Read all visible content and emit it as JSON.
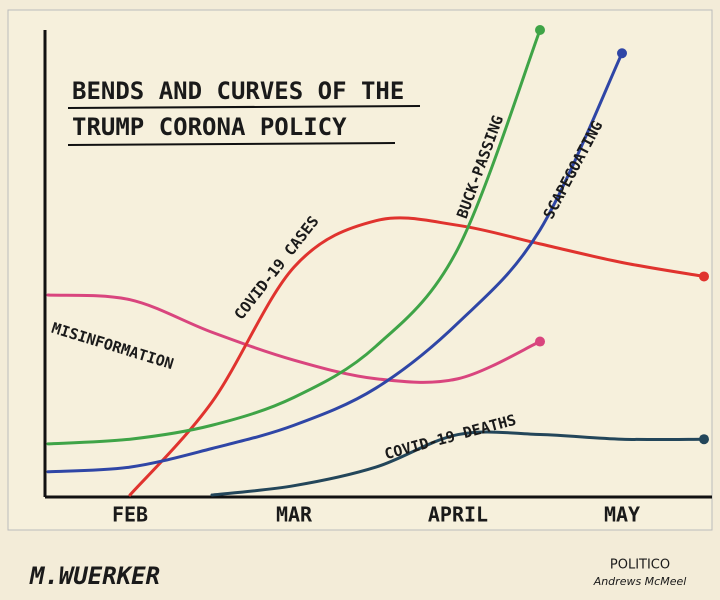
{
  "chart_data": {
    "type": "line",
    "title": [
      "BENDS AND CURVES OF THE",
      "TRUMP CORONA POLICY"
    ],
    "categories": [
      null,
      "FEB",
      null,
      "MAR",
      null,
      "APRIL",
      null,
      "MAY",
      null
    ],
    "ylim": [
      0,
      100
    ],
    "series": [
      {
        "name": "MISINFORMATION",
        "color": "#d9457e",
        "values": [
          43,
          42,
          35,
          29,
          25,
          25,
          33,
          null,
          null
        ]
      },
      {
        "name": "COVID-19 CASES",
        "color": "#e0332e",
        "values": [
          null,
          0,
          20,
          49,
          59,
          58,
          54,
          50,
          47
        ]
      },
      {
        "name": "BUCK-PASSING",
        "color": "#3fa447",
        "values": [
          11,
          12,
          15,
          21,
          32,
          53,
          100,
          null,
          null
        ]
      },
      {
        "name": "SCAPEGOATING",
        "color": "#2f46a6",
        "values": [
          5,
          6,
          10,
          15,
          23,
          37,
          57,
          95,
          null
        ]
      },
      {
        "name": "COVID-19 DEATHS",
        "color": "#23465a",
        "values": [
          null,
          null,
          0,
          2,
          6,
          13,
          13,
          12,
          12
        ]
      }
    ]
  },
  "signature": "M.WUERKER",
  "credits": [
    "POLITICO",
    "Andrews McMeel"
  ]
}
